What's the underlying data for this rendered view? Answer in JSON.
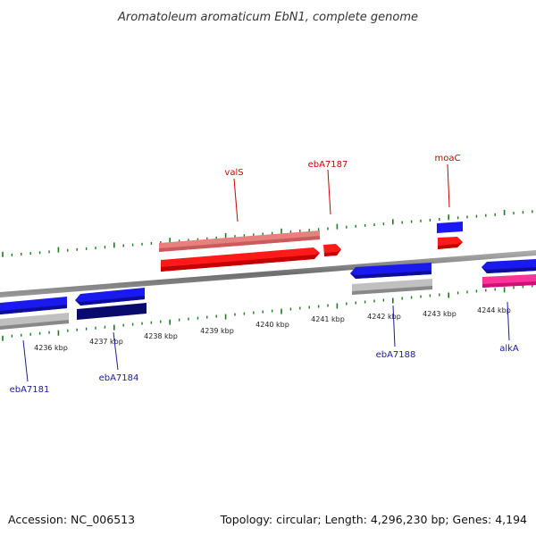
{
  "title": "Aromatoleum aromaticum EbN1, complete genome",
  "footer": {
    "accession": "Accession: NC_006513",
    "summary": "Topology: circular; Length: 4,296,230 bp; Genes: 4,194"
  },
  "colors": {
    "forward_label": "#cc0000",
    "reverse_label": "#1a1a99",
    "tick": "#1e7a1e",
    "backbone": "#7a7a7a"
  },
  "axis": {
    "tick_labels": [
      "4236 kbp",
      "4237 kbp",
      "4238 kbp",
      "4239 kbp",
      "4240 kbp",
      "4241 kbp",
      "4242 kbp",
      "4243 kbp",
      "4244 kbp"
    ]
  },
  "genes": {
    "forward": [
      {
        "name": "valS",
        "strand": "+"
      },
      {
        "name": "ebA7187",
        "strand": "+"
      },
      {
        "name": "moaC",
        "strand": "+"
      }
    ],
    "reverse": [
      {
        "name": "ebA7181",
        "strand": "-"
      },
      {
        "name": "ebA7184",
        "strand": "-"
      },
      {
        "name": "ebA7188",
        "strand": "-"
      },
      {
        "name": "alkA",
        "strand": "-"
      }
    ]
  }
}
